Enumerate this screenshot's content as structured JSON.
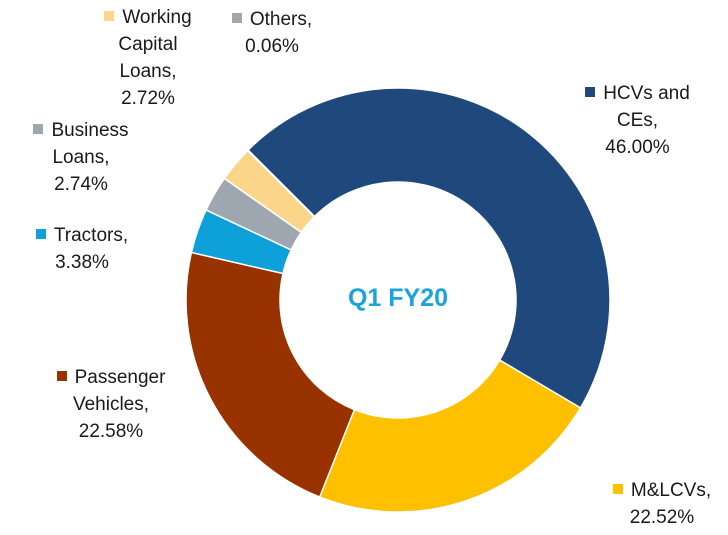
{
  "chart_data": {
    "type": "pie",
    "donut": true,
    "center_label": "Q1 FY20",
    "categories": [
      "HCVs and CEs,",
      "M&LCVs,",
      "Passenger Vehicles,",
      "Tractors,",
      "Business Loans,",
      "Working Capital Loans,",
      "Others,"
    ],
    "values": [
      46.0,
      22.52,
      22.58,
      3.38,
      2.74,
      2.72,
      0.06
    ],
    "value_labels": [
      "46.00%",
      "22.52%",
      "22.58%",
      "3.38%",
      "2.74%",
      "2.72%",
      "0.06%"
    ],
    "colors": [
      "#1f497d",
      "#ffc000",
      "#983200",
      "#0ea1d9",
      "#9ea6b0",
      "#fbd68a",
      "#a5a5a5"
    ]
  }
}
